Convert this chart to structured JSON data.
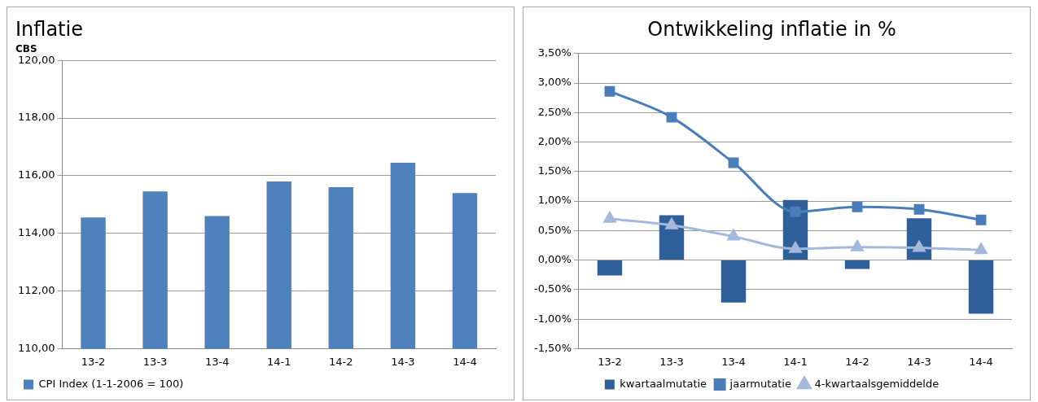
{
  "chart_data": [
    {
      "type": "bar",
      "title": "Inflatie",
      "subtitle": "CBS",
      "categories": [
        "13-2",
        "13-3",
        "13-4",
        "14-1",
        "14-2",
        "14-3",
        "14-4"
      ],
      "series": [
        {
          "name": "CPI Index (1-1-2006 = 100)",
          "color": "#4f81bd",
          "values": [
            114.55,
            115.45,
            114.6,
            115.8,
            115.6,
            116.45,
            115.4
          ]
        }
      ],
      "ylim": [
        110,
        120
      ],
      "yticks": [
        {
          "value": 110,
          "label": "110,00"
        },
        {
          "value": 112,
          "label": "112,00"
        },
        {
          "value": 114,
          "label": "114,00"
        },
        {
          "value": 116,
          "label": "116,00"
        },
        {
          "value": 118,
          "label": "118,00"
        },
        {
          "value": 120,
          "label": "120,00"
        }
      ],
      "grid": "y",
      "legend": "bottom"
    },
    {
      "type": "bar",
      "title": "Ontwikkeling inflatie in %",
      "categories": [
        "13-2",
        "13-3",
        "13-4",
        "14-1",
        "14-2",
        "14-3",
        "14-4"
      ],
      "series": [
        {
          "name": "kwartaalmutatie",
          "type": "bar",
          "color": "#2f5f98",
          "values": [
            -0.26,
            0.76,
            -0.72,
            1.02,
            -0.15,
            0.71,
            -0.91
          ]
        },
        {
          "name": "jaarmutatie",
          "type": "line",
          "marker": "square",
          "color": "#4a7ebb",
          "values": [
            2.86,
            2.42,
            1.65,
            0.82,
            0.9,
            0.86,
            0.68
          ]
        },
        {
          "name": "4-kwartaalsgemiddelde",
          "type": "line",
          "marker": "triangle",
          "color": "#a3b9dc",
          "values": [
            0.7,
            0.59,
            0.4,
            0.19,
            0.22,
            0.21,
            0.17
          ]
        }
      ],
      "ylim": [
        -1.5,
        3.5
      ],
      "yticks": [
        {
          "value": -1.5,
          "label": "-1,50%"
        },
        {
          "value": -1,
          "label": "-1,00%"
        },
        {
          "value": -0.5,
          "label": "-0,50%"
        },
        {
          "value": 0,
          "label": "0,00%"
        },
        {
          "value": 0.5,
          "label": "0,50%"
        },
        {
          "value": 1,
          "label": "1,00%"
        },
        {
          "value": 1.5,
          "label": "1,50%"
        },
        {
          "value": 2,
          "label": "2,00%"
        },
        {
          "value": 2.5,
          "label": "2,50%"
        },
        {
          "value": 3,
          "label": "3,00%"
        },
        {
          "value": 3.5,
          "label": "3,50%"
        }
      ],
      "grid": "y",
      "legend": "bottom"
    }
  ]
}
